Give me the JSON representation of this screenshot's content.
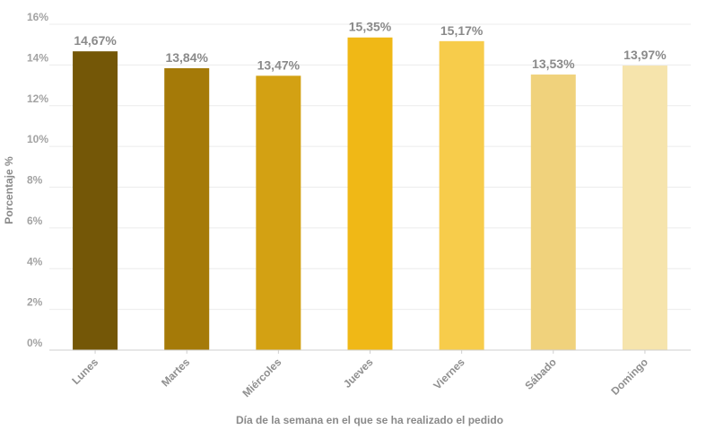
{
  "chart_data": {
    "type": "bar",
    "categories": [
      "Lunes",
      "Martes",
      "Miércoles",
      "Jueves",
      "Viernes",
      "Sábado",
      "Domingo"
    ],
    "values": [
      14.67,
      13.84,
      13.47,
      15.35,
      15.17,
      13.53,
      13.97
    ],
    "data_labels": [
      "14,67%",
      "13,84%",
      "13,47%",
      "15,35%",
      "15,17%",
      "13,53%",
      "13,97%"
    ],
    "bar_colors": [
      "#745707",
      "#a57a08",
      "#d3a113",
      "#f0b816",
      "#f7cc4b",
      "#f0d27c",
      "#f6e4ac"
    ],
    "ylim": [
      0,
      16
    ],
    "yticks": [
      0,
      2,
      4,
      6,
      8,
      10,
      12,
      14,
      16
    ],
    "ytick_labels": [
      "0%",
      "2%",
      "4%",
      "6%",
      "8%",
      "10%",
      "12%",
      "14%",
      "16%"
    ],
    "ylabel": "Porcentaje %",
    "xlabel": "Día de la semana en el que se ha realizado el pedido",
    "grid": true,
    "legend": "none"
  }
}
